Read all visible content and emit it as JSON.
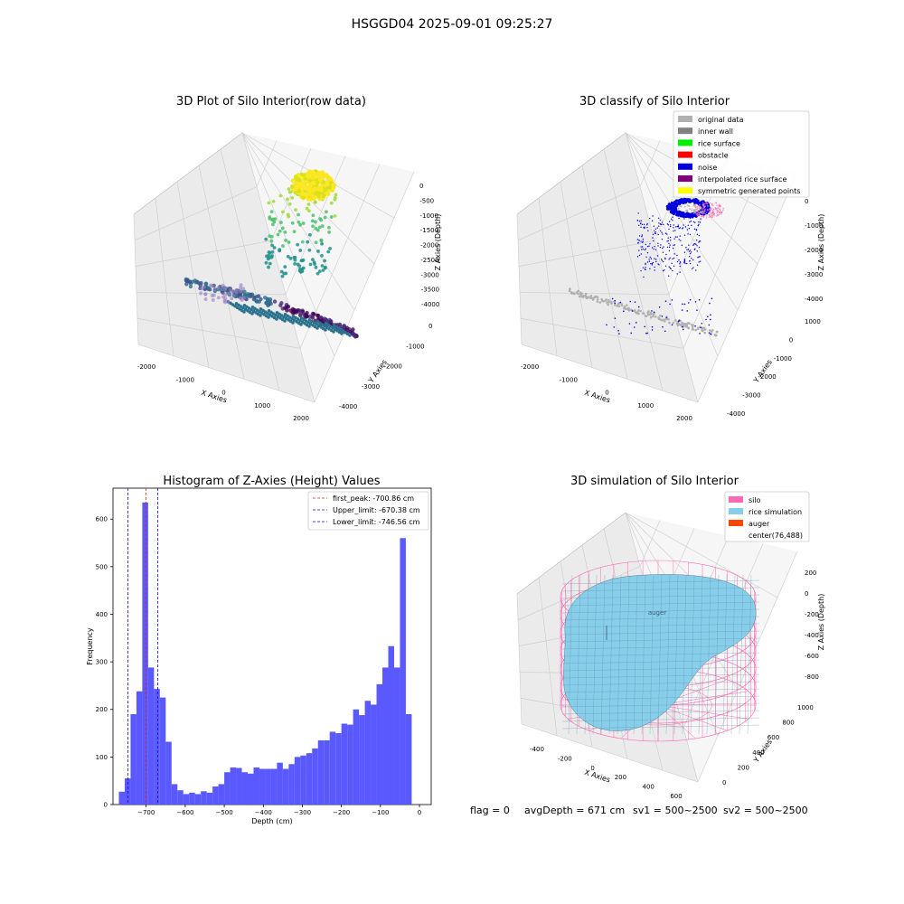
{
  "suptitle": "HSGGD04 2025-09-01 09:25:27",
  "footer": {
    "flag": "flag = 0",
    "avg": "avgDepth = 671 cm",
    "sv1": "sv1 = 500~2500",
    "sv2": "sv2 = 500~2500"
  },
  "colors": {
    "hist_bar": "#5050ff",
    "peak_line": "#e02020",
    "limit_line": "#1010c0",
    "silo": "#ff69b4",
    "rice": "#87ceeb",
    "auger": "#ff4500",
    "original": "#b0b0b0",
    "inner_wall": "#808080",
    "rice_surface": "#00ee00",
    "obstacle": "#ff0000",
    "noise": "#0000dd",
    "interpolated": "#800080",
    "symmetric": "#ffff00"
  },
  "panels": {
    "raw": {
      "title": "3D Plot of Silo Interior(row data)",
      "xlabel": "X Axies",
      "ylabel": "Y Axies",
      "zlabel": "Z Axies (Depth)",
      "xticks": [
        "-2000",
        "-1000",
        "0",
        "1000",
        "2000"
      ],
      "yticks": [
        "0",
        "-1000",
        "-2000",
        "-3000",
        "-4000"
      ],
      "zticks": [
        "0",
        "-500",
        "-1000",
        "-1500",
        "-2000",
        "-2500",
        "-3000",
        "-3500",
        "-4000"
      ]
    },
    "classify": {
      "title": "3D classify of Silo Interior",
      "xlabel": "X Axies",
      "ylabel": "Y Axies",
      "zlabel": "Z Axies (Depth)",
      "xticks": [
        "-2000",
        "-1000",
        "0",
        "1000",
        "2000"
      ],
      "yticks": [
        "1000",
        "0",
        "-1000",
        "-2000",
        "-3000",
        "-4000"
      ],
      "zticks": [
        "0",
        "-1000",
        "-2000",
        "-3000",
        "-4000"
      ],
      "legend": [
        "original data",
        "inner wall",
        "rice surface",
        "obstacle",
        "noise",
        "interpolated rice surface",
        "symmetric generated points"
      ]
    },
    "sim": {
      "title": "3D simulation of Silo Interior",
      "xlabel": "X Axies",
      "ylabel": "Y Axies",
      "zlabel": "Z Axies (Depth)",
      "xticks": [
        "-400",
        "-200",
        "0",
        "200",
        "400",
        "600"
      ],
      "yticks": [
        "0",
        "200",
        "400",
        "600",
        "800",
        "1000"
      ],
      "zticks": [
        "200",
        "0",
        "-200",
        "-400",
        "-600",
        "-800"
      ],
      "legend": [
        "silo",
        "rice simulation",
        "auger",
        "center(76,488)"
      ],
      "auger_label": "auger"
    }
  },
  "chart_data": [
    {
      "type": "bar",
      "title": "Histogram of Z-Axies (Height) Values",
      "xlabel": "Depth (cm)",
      "ylabel": "Frequency",
      "xlim": [
        -785,
        30
      ],
      "ylim": [
        0,
        665
      ],
      "xticks": [
        -700,
        -600,
        -500,
        -400,
        -300,
        -200,
        -100,
        0
      ],
      "yticks": [
        0,
        100,
        200,
        300,
        400,
        500,
        600
      ],
      "bin_start": -770,
      "bin_width": 15,
      "values": [
        27,
        55,
        190,
        238,
        635,
        288,
        243,
        225,
        132,
        43,
        30,
        22,
        25,
        22,
        28,
        25,
        38,
        43,
        68,
        78,
        77,
        68,
        65,
        78,
        75,
        75,
        75,
        88,
        75,
        85,
        100,
        103,
        108,
        118,
        135,
        135,
        153,
        150,
        170,
        168,
        200,
        188,
        218,
        210,
        253,
        288,
        333,
        288,
        560,
        190
      ],
      "vlines": [
        {
          "name": "first_peak: -700.86 cm",
          "x": -700.86,
          "style": "peak"
        },
        {
          "name": "Upper_limit: -670.38 cm",
          "x": -670.38,
          "style": "limit"
        },
        {
          "name": "Lower_limit: -746.56 cm",
          "x": -746.56,
          "style": "limit"
        }
      ],
      "legend_position": "top-right"
    }
  ]
}
